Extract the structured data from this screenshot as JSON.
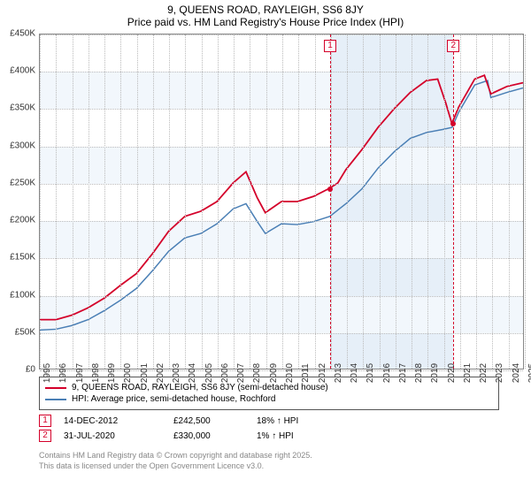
{
  "title_line1": "9, QUEENS ROAD, RAYLEIGH, SS6 8JY",
  "title_line2": "Price paid vs. HM Land Registry's House Price Index (HPI)",
  "chart": {
    "type": "line",
    "x_years": [
      1995,
      1996,
      1997,
      1998,
      1999,
      2000,
      2001,
      2002,
      2003,
      2004,
      2005,
      2006,
      2007,
      2008,
      2009,
      2010,
      2011,
      2012,
      2013,
      2014,
      2015,
      2016,
      2017,
      2018,
      2019,
      2020,
      2021,
      2022,
      2023,
      2024,
      2025
    ],
    "ylim": [
      0,
      450000
    ],
    "ytick_step": 50000,
    "ytick_labels": [
      "£0",
      "£50K",
      "£100K",
      "£150K",
      "£200K",
      "£250K",
      "£300K",
      "£350K",
      "£400K",
      "£450K"
    ],
    "background_color": "#ffffff",
    "band_color": "#f2f7fc",
    "highlight_color": "#e6eff8",
    "grid_color": "#bbbbbb",
    "series": {
      "price_paid": {
        "color": "#d4002a",
        "line_width": 1.8,
        "label": "9, QUEENS ROAD, RAYLEIGH, SS6 8JY (semi-detached house)",
        "data": [
          [
            1995,
            66000
          ],
          [
            1996,
            66000
          ],
          [
            1997,
            72000
          ],
          [
            1998,
            82000
          ],
          [
            1999,
            95000
          ],
          [
            2000,
            112000
          ],
          [
            2001,
            128000
          ],
          [
            2002,
            155000
          ],
          [
            2003,
            185000
          ],
          [
            2004,
            205000
          ],
          [
            2005,
            212000
          ],
          [
            2006,
            225000
          ],
          [
            2007,
            250000
          ],
          [
            2007.8,
            265000
          ],
          [
            2008.5,
            230000
          ],
          [
            2009,
            210000
          ],
          [
            2010,
            225000
          ],
          [
            2011,
            225000
          ],
          [
            2012,
            232000
          ],
          [
            2012.96,
            242500
          ],
          [
            2013.5,
            250000
          ],
          [
            2014,
            268000
          ],
          [
            2015,
            295000
          ],
          [
            2016,
            325000
          ],
          [
            2017,
            350000
          ],
          [
            2018,
            372000
          ],
          [
            2019,
            388000
          ],
          [
            2019.7,
            390000
          ],
          [
            2020.2,
            358000
          ],
          [
            2020.58,
            330000
          ],
          [
            2021,
            352000
          ],
          [
            2022,
            390000
          ],
          [
            2022.6,
            395000
          ],
          [
            2023,
            370000
          ],
          [
            2024,
            380000
          ],
          [
            2025,
            385000
          ]
        ]
      },
      "hpi": {
        "color": "#4a7fb5",
        "line_width": 1.5,
        "label": "HPI: Average price, semi-detached house, Rochford",
        "data": [
          [
            1995,
            52000
          ],
          [
            1996,
            53000
          ],
          [
            1997,
            58000
          ],
          [
            1998,
            66000
          ],
          [
            1999,
            78000
          ],
          [
            2000,
            92000
          ],
          [
            2001,
            108000
          ],
          [
            2002,
            132000
          ],
          [
            2003,
            158000
          ],
          [
            2004,
            176000
          ],
          [
            2005,
            182000
          ],
          [
            2006,
            195000
          ],
          [
            2007,
            215000
          ],
          [
            2007.8,
            222000
          ],
          [
            2008.5,
            198000
          ],
          [
            2009,
            182000
          ],
          [
            2010,
            195000
          ],
          [
            2011,
            194000
          ],
          [
            2012,
            198000
          ],
          [
            2013,
            205000
          ],
          [
            2014,
            222000
          ],
          [
            2015,
            242000
          ],
          [
            2016,
            270000
          ],
          [
            2017,
            292000
          ],
          [
            2018,
            310000
          ],
          [
            2019,
            318000
          ],
          [
            2020,
            322000
          ],
          [
            2020.6,
            325000
          ],
          [
            2021,
            345000
          ],
          [
            2022,
            382000
          ],
          [
            2022.8,
            388000
          ],
          [
            2023,
            365000
          ],
          [
            2024,
            372000
          ],
          [
            2025,
            378000
          ]
        ]
      }
    },
    "highlight_range": [
      2012.96,
      2020.58
    ],
    "markers": [
      {
        "n": "1",
        "x": 2012.96,
        "y": 242500,
        "color": "#d4002a"
      },
      {
        "n": "2",
        "x": 2020.58,
        "y": 330000,
        "color": "#d4002a"
      }
    ]
  },
  "sales": [
    {
      "n": "1",
      "date": "14-DEC-2012",
      "price": "£242,500",
      "vs_hpi": "18% ↑ HPI",
      "color": "#d4002a"
    },
    {
      "n": "2",
      "date": "31-JUL-2020",
      "price": "£330,000",
      "vs_hpi": "1% ↑ HPI",
      "color": "#d4002a"
    }
  ],
  "attribution_line1": "Contains HM Land Registry data © Crown copyright and database right 2025.",
  "attribution_line2": "This data is licensed under the Open Government Licence v3.0."
}
